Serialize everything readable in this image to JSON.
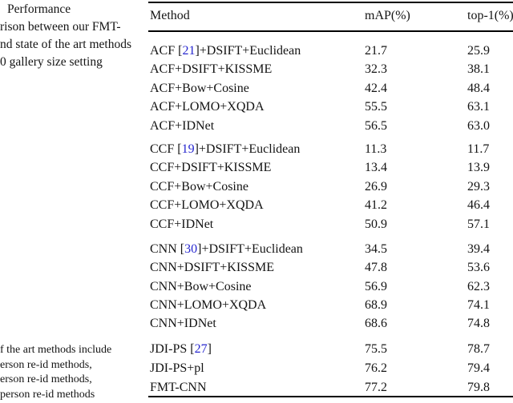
{
  "caption_top": {
    "lines": [
      "Performance",
      "rison between our FMT-",
      "nd state of the art methods",
      "0 gallery size setting"
    ]
  },
  "caption_bottom": {
    "lines": [
      "f the art methods include",
      "erson re-id methods,",
      "erson re-id methods,",
      "person re-id methods"
    ]
  },
  "table": {
    "headers": {
      "method": "Method",
      "map": "mAP(%)",
      "top1": "top-1(%)"
    },
    "groups": [
      {
        "rows": [
          {
            "method_pre": "ACF [",
            "cite": "21",
            "method_post": "]+DSIFT+Euclidean",
            "map": "21.7",
            "top1": "25.9"
          },
          {
            "method_pre": "ACF+DSIFT+KISSME",
            "cite": "",
            "method_post": "",
            "map": "32.3",
            "top1": "38.1"
          },
          {
            "method_pre": "ACF+Bow+Cosine",
            "cite": "",
            "method_post": "",
            "map": "42.4",
            "top1": "48.4"
          },
          {
            "method_pre": "ACF+LOMO+XQDA",
            "cite": "",
            "method_post": "",
            "map": "55.5",
            "top1": "63.1"
          },
          {
            "method_pre": "ACF+IDNet",
            "cite": "",
            "method_post": "",
            "map": "56.5",
            "top1": "63.0"
          }
        ]
      },
      {
        "rows": [
          {
            "method_pre": "CCF [",
            "cite": "19",
            "method_post": "]+DSIFT+Euclidean",
            "map": "11.3",
            "top1": "11.7"
          },
          {
            "method_pre": "CCF+DSIFT+KISSME",
            "cite": "",
            "method_post": "",
            "map": "13.4",
            "top1": "13.9"
          },
          {
            "method_pre": "CCF+Bow+Cosine",
            "cite": "",
            "method_post": "",
            "map": "26.9",
            "top1": "29.3"
          },
          {
            "method_pre": "CCF+LOMO+XQDA",
            "cite": "",
            "method_post": "",
            "map": "41.2",
            "top1": "46.4"
          },
          {
            "method_pre": "CCF+IDNet",
            "cite": "",
            "method_post": "",
            "map": "50.9",
            "top1": "57.1"
          }
        ]
      },
      {
        "rows": [
          {
            "method_pre": "CNN [",
            "cite": "30",
            "method_post": "]+DSIFT+Euclidean",
            "map": "34.5",
            "top1": "39.4"
          },
          {
            "method_pre": "CNN+DSIFT+KISSME",
            "cite": "",
            "method_post": "",
            "map": "47.8",
            "top1": "53.6"
          },
          {
            "method_pre": "CNN+Bow+Cosine",
            "cite": "",
            "method_post": "",
            "map": "56.9",
            "top1": "62.3"
          },
          {
            "method_pre": "CNN+LOMO+XQDA",
            "cite": "",
            "method_post": "",
            "map": "68.9",
            "top1": "74.1"
          },
          {
            "method_pre": "CNN+IDNet",
            "cite": "",
            "method_post": "",
            "map": "68.6",
            "top1": "74.8"
          }
        ]
      },
      {
        "rows": [
          {
            "method_pre": "JDI-PS [",
            "cite": "27",
            "method_post": "]",
            "map": "75.5",
            "top1": "78.7"
          },
          {
            "method_pre": "JDI-PS+pl",
            "cite": "",
            "method_post": "",
            "map": "76.2",
            "top1": "79.4"
          },
          {
            "method_pre": "FMT-CNN",
            "cite": "",
            "method_post": "",
            "map": "77.2",
            "top1": "79.8"
          }
        ]
      }
    ]
  },
  "colors": {
    "citation": "#2727cf",
    "text": "#141414",
    "rule": "#000000"
  }
}
